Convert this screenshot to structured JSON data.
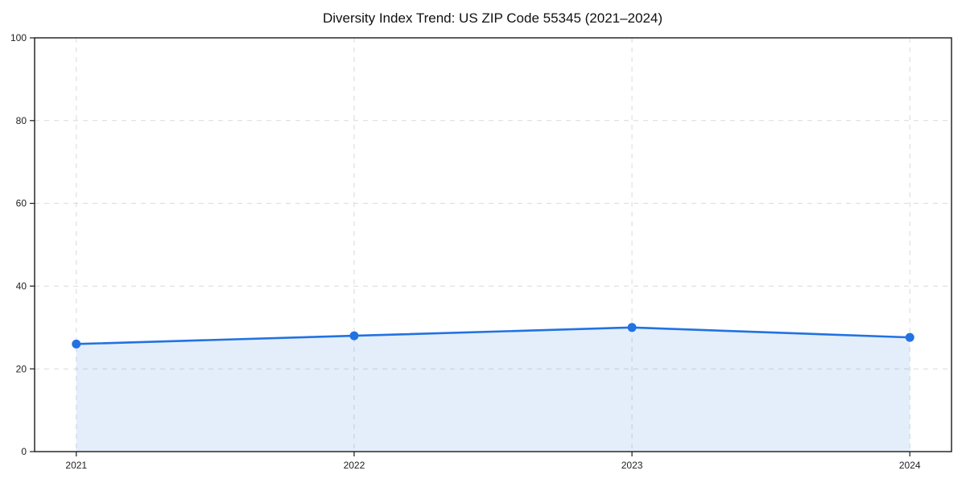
{
  "page": {
    "background": "#ffffff"
  },
  "chart_data": {
    "type": "line",
    "title": "Diversity Index Trend: US ZIP Code 55345 (2021–2024)",
    "categories": [
      "2021",
      "2022",
      "2023",
      "2024"
    ],
    "series": [
      {
        "name": "Diversity Index",
        "values": [
          26,
          28,
          30,
          27.6
        ],
        "marker": "circle",
        "area_fill": true
      }
    ],
    "xlabel": "",
    "ylabel": "",
    "ylim": [
      0,
      100
    ],
    "yticks": [
      0,
      20,
      40,
      60,
      80,
      100
    ],
    "grid": {
      "horizontal": true,
      "vertical": true,
      "style": "dashed"
    },
    "legend": "none",
    "line_color": "#2272e1",
    "fill_color": "rgba(34,114,225,0.12)",
    "axis_color": "#1a1a1a",
    "grid_color": "#d9d9d9",
    "tick_label_color": "#222222",
    "title_color": "#111111"
  }
}
